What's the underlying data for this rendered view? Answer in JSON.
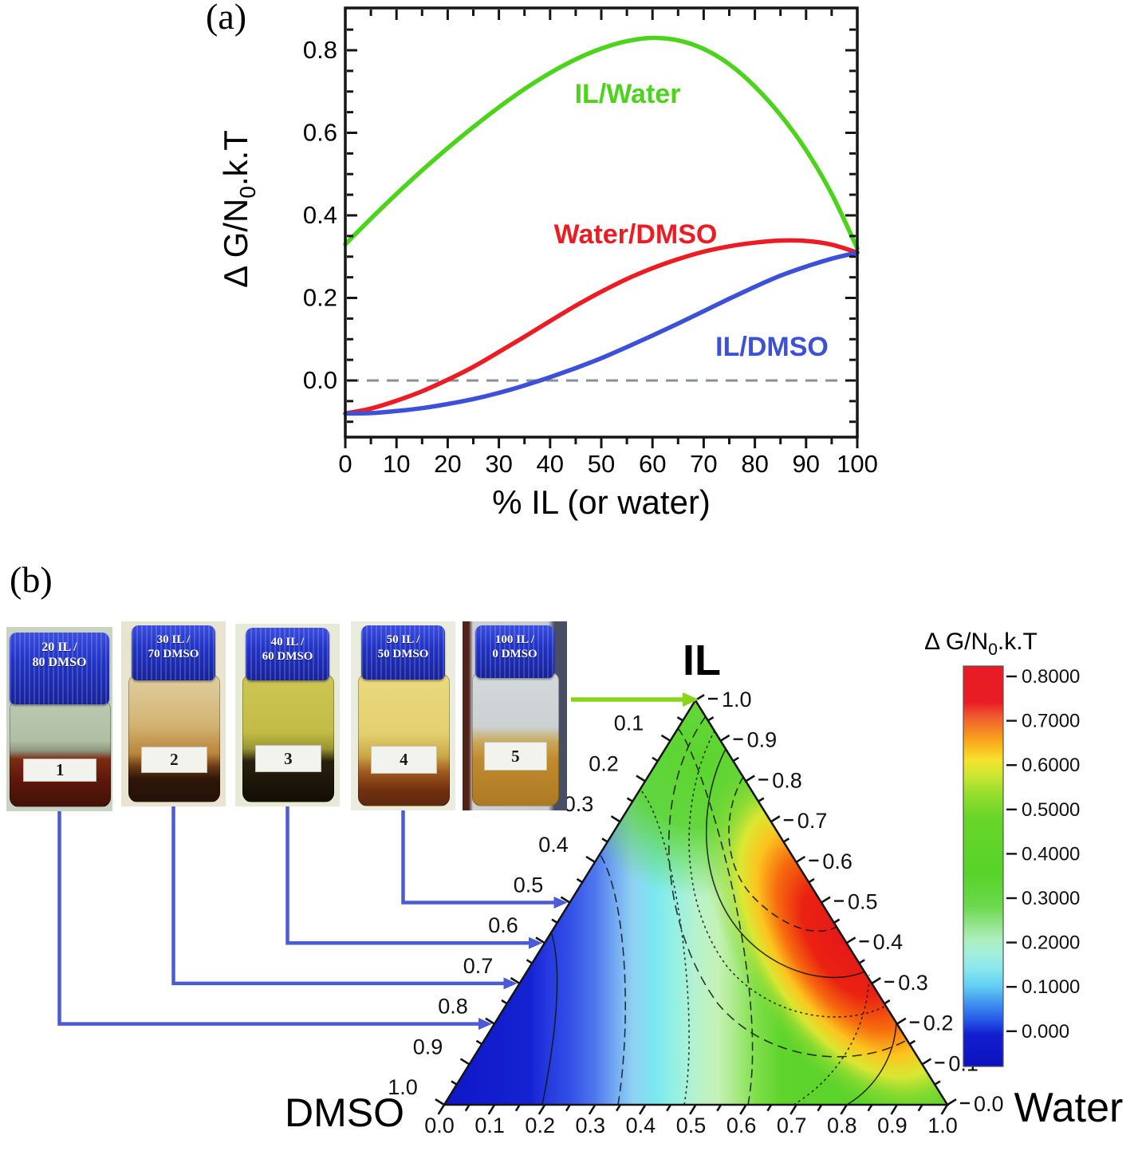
{
  "panel_a": {
    "label": "(a)",
    "y_title": {
      "main": "Δ G/N",
      "sub": "0",
      "rest": ".k.T"
    },
    "x_title": "% IL (or water)",
    "y_ticks": [
      "0.8",
      "0.6",
      "0.4",
      "0.2",
      "0.0"
    ],
    "x_ticks": [
      "0",
      "10",
      "20",
      "30",
      "40",
      "50",
      "60",
      "70",
      "80",
      "90",
      "100"
    ],
    "series_labels": {
      "green": "IL/Water",
      "red": "Water/DMSO",
      "blue": "IL/DMSO"
    },
    "colors": {
      "green": "#4cd31c",
      "red": "#ec1c24",
      "blue": "#3c50d8",
      "dashed": "#8a8f98"
    }
  },
  "panel_b": {
    "label": "(b)",
    "bottles": [
      {
        "number": "1",
        "cap_line1": "20 IL /",
        "cap_line2": "80 DMSO"
      },
      {
        "number": "2",
        "cap_line1": "30 IL /",
        "cap_line2": "70 DMSO"
      },
      {
        "number": "3",
        "cap_line1": "40 IL /",
        "cap_line2": "60 DMSO"
      },
      {
        "number": "4",
        "cap_line1": "50 IL /",
        "cap_line2": "50 DMSO"
      },
      {
        "number": "5",
        "cap_line1": "100 IL /",
        "cap_line2": "0 DMSO"
      }
    ],
    "arrows": [
      {
        "bottle": "1",
        "target_axis": "left-edge-DMSO",
        "target_value": 0.8,
        "color": "#4b5bd6"
      },
      {
        "bottle": "2",
        "target_axis": "left-edge-DMSO",
        "target_value": 0.7,
        "color": "#4b5bd6"
      },
      {
        "bottle": "3",
        "target_axis": "left-edge-DMSO",
        "target_value": 0.6,
        "color": "#4b5bd6"
      },
      {
        "bottle": "4",
        "target_axis": "left-edge-DMSO",
        "target_value": 0.5,
        "color": "#4b5bd6"
      },
      {
        "bottle": "5",
        "target_axis": "apex-IL",
        "target_value": 1.0,
        "color": "#8ad41e"
      }
    ],
    "ternary": {
      "apex_label": "IL",
      "left_corner_label": "DMSO",
      "right_corner_label": "Water",
      "left_ticks": [
        "0.1",
        "0.2",
        "0.3",
        "0.4",
        "0.5",
        "0.6",
        "0.7",
        "0.8",
        "0.9",
        "1.0"
      ],
      "right_ticks": [
        "1.0",
        "0.9",
        "0.8",
        "0.7",
        "0.6",
        "0.5",
        "0.4",
        "0.3",
        "0.2",
        "0.1",
        "0.0"
      ],
      "bottom_ticks": [
        "0.0",
        "0.1",
        "0.2",
        "0.3",
        "0.4",
        "0.5",
        "0.6",
        "0.7",
        "0.8",
        "0.9",
        "1.0"
      ]
    },
    "colorbar": {
      "title": {
        "main": "Δ G/N",
        "sub": "0",
        "rest": ".k.T"
      },
      "tick_labels": [
        "0.8000",
        "0.7000",
        "0.6000",
        "0.5000",
        "0.4000",
        "0.3000",
        "0.2000",
        "0.1000",
        "0.000"
      ]
    }
  },
  "chart_data": [
    {
      "type": "line",
      "title": "",
      "xlabel": "% IL (or water)",
      "ylabel": "Δ G/N0.k.T",
      "xlim": [
        0,
        100
      ],
      "ylim": [
        -0.14,
        0.9
      ],
      "grid": false,
      "legend_position": "inline-labels",
      "zero_line": {
        "y": 0.0,
        "style": "dashed",
        "color": "#8a8f98"
      },
      "series": [
        {
          "name": "IL/Water",
          "color": "#4cd31c",
          "points": [
            [
              0,
              0.33
            ],
            [
              5,
              0.392
            ],
            [
              10,
              0.452
            ],
            [
              15,
              0.509
            ],
            [
              20,
              0.563
            ],
            [
              25,
              0.614
            ],
            [
              30,
              0.662
            ],
            [
              35,
              0.706
            ],
            [
              40,
              0.745
            ],
            [
              45,
              0.778
            ],
            [
              50,
              0.804
            ],
            [
              55,
              0.822
            ],
            [
              60,
              0.83
            ],
            [
              65,
              0.824
            ],
            [
              70,
              0.803
            ],
            [
              75,
              0.766
            ],
            [
              80,
              0.712
            ],
            [
              85,
              0.643
            ],
            [
              90,
              0.558
            ],
            [
              95,
              0.452
            ],
            [
              100,
              0.32
            ]
          ]
        },
        {
          "name": "Water/DMSO",
          "color": "#ec1c24",
          "points": [
            [
              0,
              -0.08
            ],
            [
              5,
              -0.068
            ],
            [
              10,
              -0.049
            ],
            [
              15,
              -0.026
            ],
            [
              20,
              0.002
            ],
            [
              25,
              0.033
            ],
            [
              30,
              0.069
            ],
            [
              35,
              0.106
            ],
            [
              40,
              0.144
            ],
            [
              45,
              0.181
            ],
            [
              50,
              0.215
            ],
            [
              55,
              0.246
            ],
            [
              60,
              0.272
            ],
            [
              65,
              0.294
            ],
            [
              70,
              0.312
            ],
            [
              75,
              0.325
            ],
            [
              80,
              0.334
            ],
            [
              85,
              0.339
            ],
            [
              90,
              0.338
            ],
            [
              95,
              0.329
            ],
            [
              100,
              0.31
            ]
          ]
        },
        {
          "name": "IL/DMSO",
          "color": "#3c50d8",
          "points": [
            [
              0,
              -0.08
            ],
            [
              5,
              -0.079
            ],
            [
              10,
              -0.074
            ],
            [
              15,
              -0.067
            ],
            [
              20,
              -0.057
            ],
            [
              25,
              -0.045
            ],
            [
              30,
              -0.03
            ],
            [
              35,
              -0.012
            ],
            [
              40,
              0.008
            ],
            [
              45,
              0.03
            ],
            [
              50,
              0.054
            ],
            [
              55,
              0.081
            ],
            [
              60,
              0.109
            ],
            [
              65,
              0.138
            ],
            [
              70,
              0.168
            ],
            [
              75,
              0.198
            ],
            [
              80,
              0.227
            ],
            [
              85,
              0.254
            ],
            [
              90,
              0.276
            ],
            [
              95,
              0.295
            ],
            [
              100,
              0.31
            ]
          ]
        }
      ]
    },
    {
      "type": "heatmap",
      "subtype": "ternary-contour",
      "axes": {
        "top": "IL",
        "bottom_left": "DMSO",
        "bottom_right": "Water"
      },
      "tick_range": [
        0.0,
        1.0
      ],
      "tick_step": 0.1,
      "value_label": "Δ G/N0.k.T",
      "colorbar_levels": [
        0.0,
        0.1,
        0.2,
        0.3,
        0.4,
        0.5,
        0.6,
        0.7,
        0.8
      ],
      "colormap": [
        "#0c12bc",
        "#2457e6",
        "#62cdf2",
        "#86e6ef",
        "#aeeec0",
        "#68d52a",
        "#cfe732",
        "#fbb81e",
        "#f05830",
        "#e81c24"
      ],
      "value_at_vertices": {
        "IL": 0.31,
        "DMSO": -0.08,
        "Water": 0.33
      },
      "max_region": {
        "value": 0.83,
        "location": "IL-Water edge, IL ≈ 0.5"
      },
      "min_region": {
        "value": -0.08,
        "location": "DMSO-rich corner (blue)"
      },
      "marked_points": [
        {
          "label": "1",
          "IL": 0.2,
          "DMSO": 0.8,
          "Water": 0.0
        },
        {
          "label": "2",
          "IL": 0.3,
          "DMSO": 0.7,
          "Water": 0.0
        },
        {
          "label": "3",
          "IL": 0.4,
          "DMSO": 0.6,
          "Water": 0.0
        },
        {
          "label": "4",
          "IL": 0.5,
          "DMSO": 0.5,
          "Water": 0.0
        },
        {
          "label": "5",
          "IL": 1.0,
          "DMSO": 0.0,
          "Water": 0.0
        }
      ]
    }
  ]
}
